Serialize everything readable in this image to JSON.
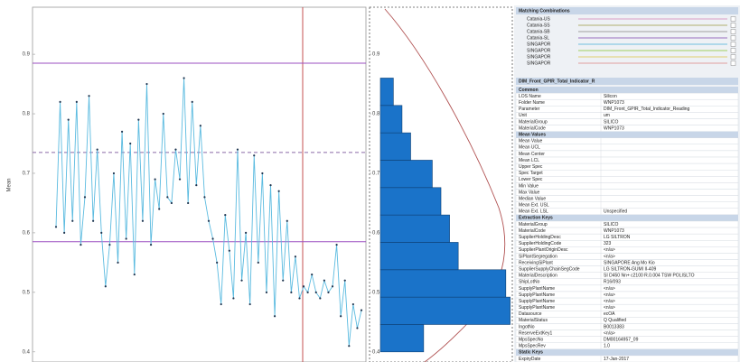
{
  "chart_data": [
    {
      "type": "control",
      "y_label": "Mean",
      "values": [
        0.61,
        0.82,
        0.6,
        0.79,
        0.62,
        0.82,
        0.58,
        0.66,
        0.83,
        0.62,
        0.74,
        0.6,
        0.51,
        0.58,
        0.7,
        0.55,
        0.77,
        0.59,
        0.75,
        0.53,
        0.79,
        0.62,
        0.85,
        0.58,
        0.69,
        0.64,
        0.8,
        0.66,
        0.65,
        0.74,
        0.69,
        0.86,
        0.65,
        0.82,
        0.68,
        0.78,
        0.66,
        0.62,
        0.59,
        0.55,
        0.48,
        0.63,
        0.57,
        0.49,
        0.74,
        0.52,
        0.6,
        0.48,
        0.73,
        0.55,
        0.7,
        0.5,
        0.68,
        0.46,
        0.67,
        0.52,
        0.62,
        0.5,
        0.56,
        0.49,
        0.51,
        0.5,
        0.53,
        0.5,
        0.49,
        0.52,
        0.5,
        0.51,
        0.58,
        0.46,
        0.52,
        0.41,
        0.48,
        0.44,
        0.47
      ],
      "color": "#5bbbe0",
      "point_color": "#1f3550",
      "control_lines": [
        {
          "value": 0.885,
          "color": "#9b4fc0",
          "dashed": false
        },
        {
          "value": 0.735,
          "color": "#8a6aa8",
          "dashed": true
        },
        {
          "value": 0.585,
          "color": "#9b4fc0",
          "dashed": false
        }
      ],
      "ylim": [
        0.383,
        0.979
      ],
      "yticks": [
        0.4,
        0.5,
        0.6,
        0.7,
        0.8,
        0.9
      ]
    },
    {
      "type": "histogram",
      "orientation": "horizontal",
      "bins": [
        0.4,
        0.446,
        0.492,
        0.538,
        0.584,
        0.63,
        0.676,
        0.722,
        0.768,
        0.814,
        0.86
      ],
      "values": [
        10,
        30,
        29,
        18,
        16,
        14,
        12,
        7,
        5,
        3
      ],
      "color": "#1a73c9",
      "xlim": [
        0,
        30.5
      ],
      "ylim": [
        0.383,
        0.979
      ],
      "yticks": [
        0.4,
        0.5,
        0.6,
        0.7,
        0.8,
        0.9
      ]
    }
  ],
  "matching_combinations": {
    "title": "Matching Combinations",
    "items": [
      {
        "name": "Catania-US",
        "color": "#d9a0c8"
      },
      {
        "name": "Catania-SS",
        "color": "#b0b070"
      },
      {
        "name": "Catania-SB",
        "color": "#a0a0a0"
      },
      {
        "name": "Catania-SL",
        "color": "#9a70c0"
      },
      {
        "name": "SINGAPOR",
        "color": "#70c0e0"
      },
      {
        "name": "SINGAPOR",
        "color": "#a0d060"
      },
      {
        "name": "SINGAPOR",
        "color": "#e0d070"
      },
      {
        "name": "SINGAPOR",
        "color": "#e0a0a0"
      }
    ]
  },
  "properties": {
    "title": "DIM_Front_GPIR_Total_Indicator_R",
    "rows": [
      {
        "section": "Common"
      },
      {
        "label": "LOS Name",
        "value": "Silicon"
      },
      {
        "label": "Folder Name",
        "value": "WNP1073"
      },
      {
        "label": "Parameter",
        "value": "DIM_Front_GPIR_Total_Indicator_Reading"
      },
      {
        "label": "Unit",
        "value": "um"
      },
      {
        "label": "MaterialGroup",
        "value": "SILICO"
      },
      {
        "label": "MaterialCode",
        "value": "WNP1073"
      },
      {
        "section": "Mean Values"
      },
      {
        "label": "Mean Value"
      },
      {
        "label": "Mean UCL"
      },
      {
        "label": "Mean Center"
      },
      {
        "label": "Mean LCL"
      },
      {
        "label": "Upper Spec"
      },
      {
        "label": "Spec Target"
      },
      {
        "label": "Lower Spec"
      },
      {
        "label": "Min Value"
      },
      {
        "label": "Max Value"
      },
      {
        "label": "Median Value"
      },
      {
        "label": "Mean Ext. USL"
      },
      {
        "label": "Mean Ext. LSL",
        "value": "Unspecified"
      },
      {
        "section": "Extraction Keys"
      },
      {
        "label": "MaterialGroup",
        "value": "SILICO"
      },
      {
        "label": "MaterialCode",
        "value": "WNP1073"
      },
      {
        "label": "SupplierHoldingDesc",
        "value": "LG SILTRON"
      },
      {
        "label": "SupplierHoldingCode",
        "value": "323"
      },
      {
        "label": "SupplierPlantOriginDesc",
        "value": "<n/a>"
      },
      {
        "label": "SiPlantSegregation",
        "value": "<n/a>"
      },
      {
        "label": "ReceivingSiPlant",
        "value": "SINGAPORE Ang Mo Kio"
      },
      {
        "label": "SupplierSupplyChainSegCode",
        "value": "LG SILTRON-GUMI II-409"
      },
      {
        "label": "MaterialDescription",
        "value": "SI D450 Nn+ c2100 R.0.004 TSW POLISLTO"
      },
      {
        "label": "ShipLotNo",
        "value": "R16/093"
      },
      {
        "label": "SupplyPlantName",
        "value": "<n/a>"
      },
      {
        "label": "SupplyPlantName",
        "value": "<n/a>"
      },
      {
        "label": "SupplyPlantName",
        "value": "<n/a>"
      },
      {
        "label": "SupplyPlantName",
        "value": "<n/a>"
      },
      {
        "label": "Datasource",
        "value": "ecOA"
      },
      {
        "label": "MaterialStatus",
        "value": "Q Qualified"
      },
      {
        "label": "IngotNo",
        "value": "B0013383"
      },
      {
        "label": "ReserveExtKey1",
        "value": "<n/a>"
      },
      {
        "label": "MpsSpecNo",
        "value": "DM00164957_09"
      },
      {
        "label": "MpsSpecRev",
        "value": "1.0"
      },
      {
        "section": "Static Keys"
      },
      {
        "label": "ExpiryDate",
        "value": "17-Jan-2017"
      }
    ]
  }
}
